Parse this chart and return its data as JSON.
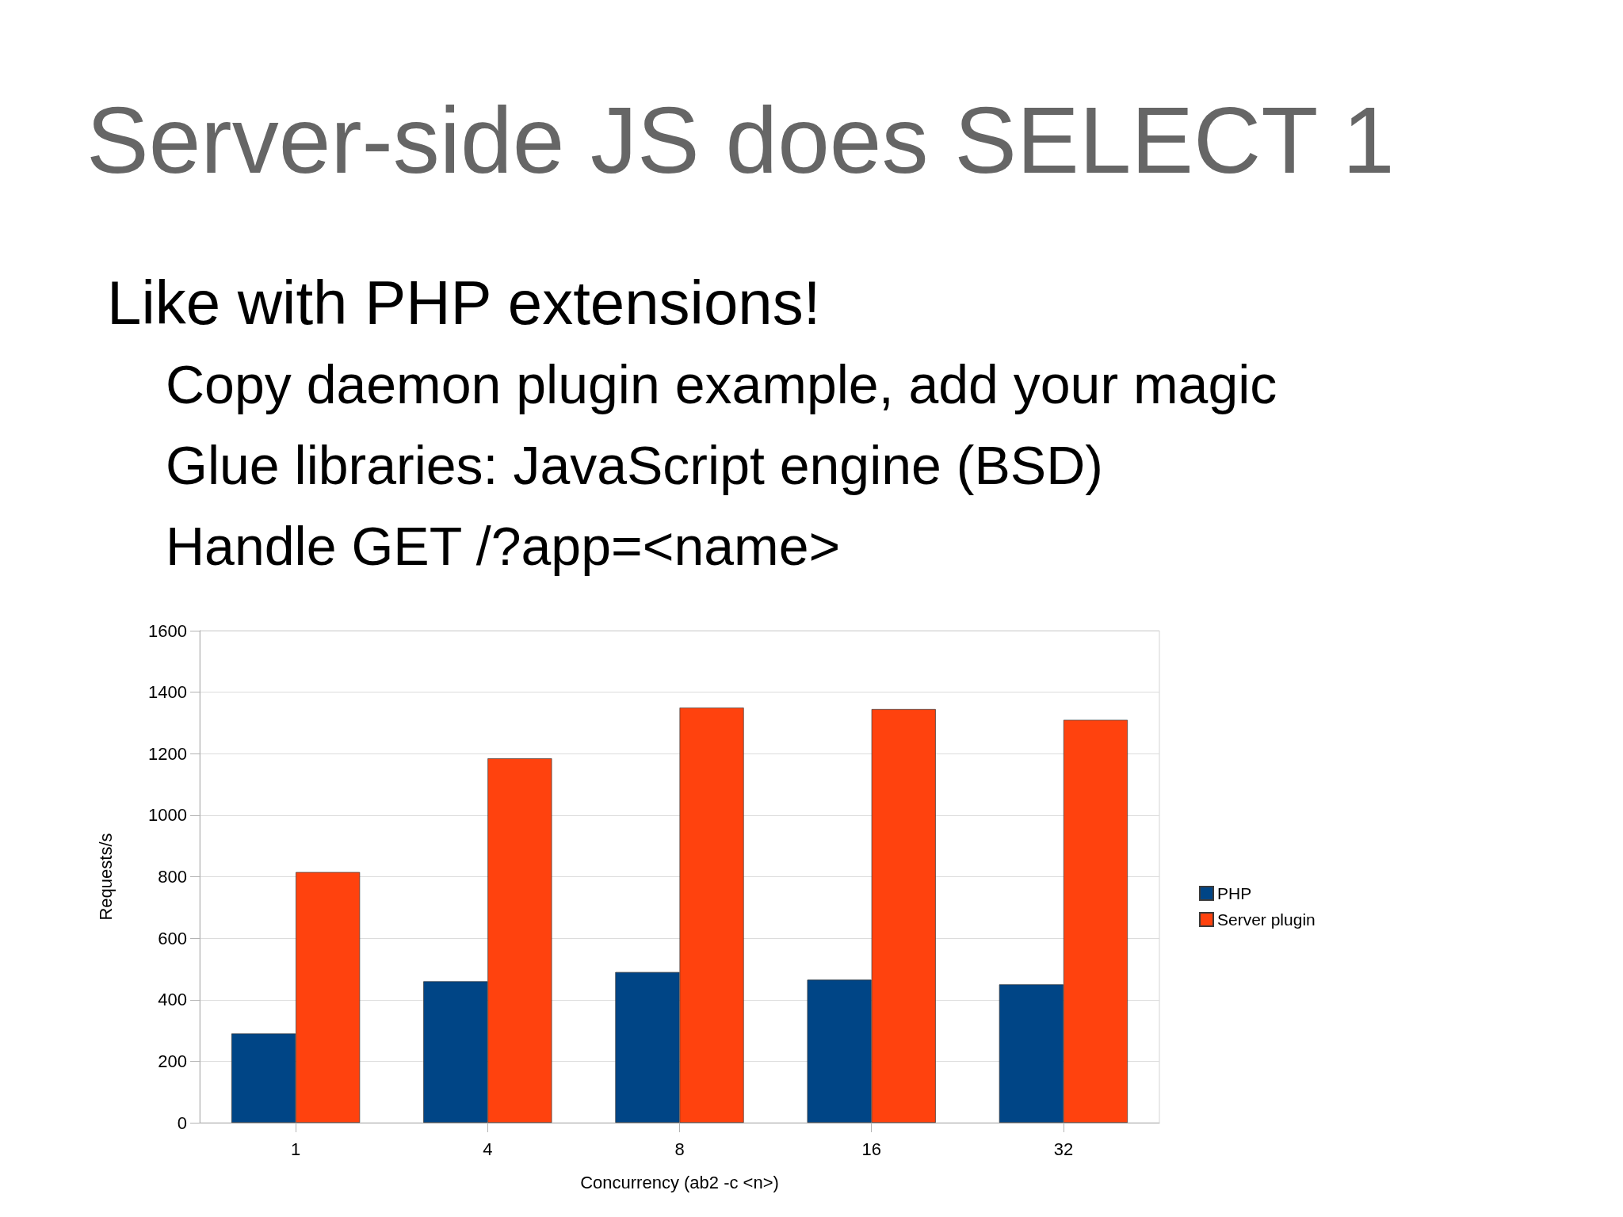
{
  "chart_data": {
    "type": "bar",
    "title": "Server-side JS does SELECT 1",
    "subtitle": "Like with PHP extensions!",
    "annotations": [
      "Copy daemon plugin example, add your magic",
      "Glue libraries: JavaScript engine (BSD)",
      "Handle GET /?app=<name>"
    ],
    "xlabel": "Concurrency (ab2 -c <n>)",
    "ylabel": "Requests/s",
    "categories": [
      "1",
      "4",
      "8",
      "16",
      "32"
    ],
    "series": [
      {
        "name": "PHP",
        "color": "#004586",
        "values": [
          290,
          460,
          490,
          465,
          450
        ]
      },
      {
        "name": "Server plugin",
        "color": "#ff420e",
        "values": [
          815,
          1185,
          1350,
          1345,
          1310
        ]
      }
    ],
    "ylim": [
      0,
      1600
    ],
    "yticks": [
      0,
      200,
      400,
      600,
      800,
      1000,
      1200,
      1400,
      1600
    ],
    "grid": "y",
    "legend": "right"
  }
}
